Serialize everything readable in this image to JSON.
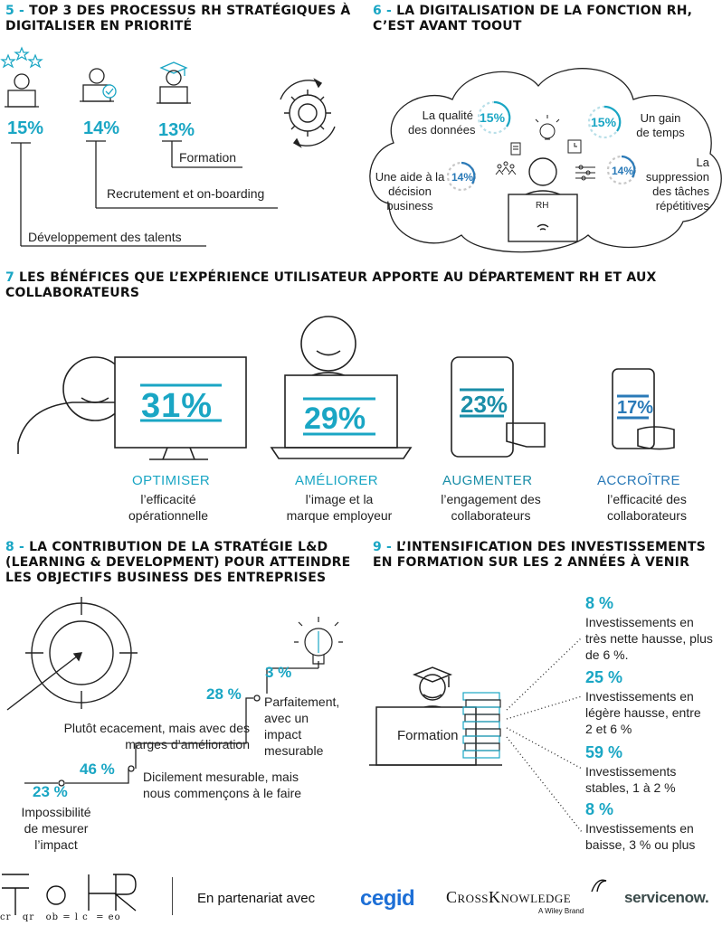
{
  "s5": {
    "num": "5 -",
    "title1": "TOP 3 DES PROCESSUS RH STRATÉGIQUES À",
    "title2": "DIGITALISER EN PRIORITÉ",
    "items": [
      {
        "pct": "15%",
        "label": "Développement des talents"
      },
      {
        "pct": "14%",
        "label": "Recrutement et on-boarding"
      },
      {
        "pct": "13%",
        "label": "Formation"
      }
    ]
  },
  "s6": {
    "num": "6 -",
    "title1": "LA DIGITALISATION DE LA FONCTION RH,",
    "title2": "C’EST AVANT TOOUT",
    "center": "RH",
    "items": [
      {
        "pct": "15%",
        "label": "La qualité\ndes données"
      },
      {
        "pct": "15%",
        "label": "Un gain\nde temps"
      },
      {
        "pct": "14%",
        "label": "Une aide à la\ndécision\nbusiness"
      },
      {
        "pct": "14%",
        "label": "La\nsuppression\ndes tâches\nrépétitives"
      }
    ]
  },
  "s7": {
    "num": "7",
    "title1": "LES BÉNÉFICES QUE L’EXPÉRIENCE UTILISATEUR APPORTE AU DÉPARTEMENT RH ET AUX",
    "title2": "COLLABORATEURS",
    "items": [
      {
        "pct": "31%",
        "verb": "OPTIMISER",
        "desc": "l’efficacité\nopérationnelle",
        "color": "#1aa6c4"
      },
      {
        "pct": "29%",
        "verb": "AMÉLIORER",
        "desc": "l’image et la\nmarque employeur",
        "color": "#1aa6c4"
      },
      {
        "pct": "23%",
        "verb": "AUGMENTER",
        "desc": "l’engagement des\ncollaborateurs",
        "color": "#1a8ea8"
      },
      {
        "pct": "17%",
        "verb": "ACCROÎTRE",
        "desc": "l’efficacité des\ncollaborateurs",
        "color": "#2a7ab8"
      }
    ]
  },
  "s8": {
    "num": "8 -",
    "title1": "LA CONTRIBUTION DE LA STRATÉGIE L&D",
    "title2": "(LEARNING & DEVELOPMENT) POUR ATTEINDRE",
    "title3": "LES OBJECTIFS BUSINESS DES ENTREPRISES",
    "items": [
      {
        "pct": "3 %",
        "label": "Parfaitement,\navec un\nimpact\nmesurable"
      },
      {
        "pct": "28 %",
        "label": "Plutôt ecacement, mais avec des\nmarges d’amélioration"
      },
      {
        "pct": "46 %",
        "label": "Dicilement mesurable, mais\nnous commençons à le faire"
      },
      {
        "pct": "23 %",
        "label": "Impossibilité\nde mesurer\nl’impact"
      }
    ]
  },
  "s9": {
    "num": "9 -",
    "title1": "L’INTENSIFICATION DES INVESTISSEMENTS",
    "title2": "EN FORMATION SUR LES 2 ANNÉES À VENIR",
    "center": "Formation",
    "items": [
      {
        "pct": "8 %",
        "label": "Investissements en\ntrès nette hausse, plus\nde 6 %."
      },
      {
        "pct": "25 %",
        "label": "Investissements en\nlégère hausse, entre\n2 et 6 %"
      },
      {
        "pct": "59 %",
        "label": "Investissements\nstables, 1 à 2 %"
      },
      {
        "pct": "8 %",
        "label": "Investissements en\nbaisse, 3 % ou plus"
      }
    ]
  },
  "footer": {
    "logo_caption": "cr   qr   ob = l c  = eo",
    "partner": "En partenariat avec",
    "logos": [
      "cegid",
      "CrossKnowledge",
      "A Wiley Brand",
      "servicenow."
    ]
  }
}
